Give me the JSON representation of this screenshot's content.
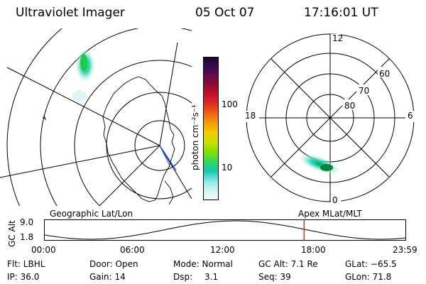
{
  "header": {
    "instrument": "Ultraviolet Imager",
    "date": "05 Oct 07",
    "time": "17:16:01 UT"
  },
  "colorbar": {
    "unit_label": "photon cm⁻²s⁻¹",
    "tick_labels": [
      "100",
      "10"
    ],
    "colors": [
      "#1a0a30",
      "#3a0a50",
      "#6a0a4a",
      "#9a0a30",
      "#c8102a",
      "#e03020",
      "#f06a10",
      "#f5a000",
      "#f0d000",
      "#c8e000",
      "#80e000",
      "#30d860",
      "#10c8b0",
      "#80e8e8",
      "#d0f4f4",
      "#f0f8f8"
    ]
  },
  "geo_map": {
    "caption": "Geographic Lat/Lon"
  },
  "polar_plot": {
    "caption": "Apex MLat/MLT",
    "mlt_labels": {
      "top": "12",
      "left": "18",
      "right": "6",
      "bottom": "0"
    },
    "lat_labels": [
      "60",
      "70",
      "80"
    ]
  },
  "altitude_strip": {
    "ylabel": "GC Alt",
    "ticks": [
      "9.0",
      "1.8"
    ],
    "time_labels": [
      "00:00",
      "06:00",
      "12:00",
      "18:00",
      "23:59"
    ],
    "marker_time_hours": 17.27
  },
  "info": {
    "flt": "Flt: LBHL",
    "ip": "IP: 36.0",
    "door": "Door: Open",
    "gain": "Gain: 14",
    "mode": "Mode: Normal",
    "dsp_label": "Dsp:",
    "dsp_value": "3.1",
    "gc_alt": "GC Alt: 7.1 Re",
    "seq": "Seq: 39",
    "glat": "GLat: −65.5",
    "glon": "GLon: 71.8"
  }
}
